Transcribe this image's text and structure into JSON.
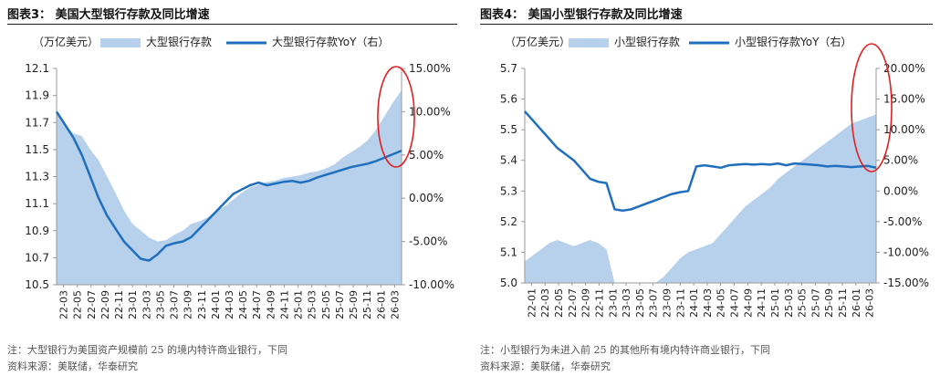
{
  "colors": {
    "area": "#b7d1ec",
    "line": "#1f6fbe",
    "text": "#222222",
    "ellipse": "#e02020",
    "axis": "#9a9a9a"
  },
  "chart_data": [
    {
      "type": "area+line",
      "figure_label": "图表3：",
      "title": "美国大型银行存款及同比增速",
      "unit_label": "（万亿美元）",
      "legend": {
        "area": "大型银行存款",
        "line": "大型银行存款YoY（右）",
        "placement": "top"
      },
      "left_axis": {
        "min": 10.5,
        "max": 12.1,
        "ticks": [
          "12.1",
          "11.9",
          "11.7",
          "11.5",
          "11.3",
          "11.1",
          "10.9",
          "10.7",
          "10.5"
        ]
      },
      "right_axis": {
        "min": -10,
        "max": 15,
        "ticks": [
          "15.00%",
          "10.00%",
          "5.00%",
          "0.00%",
          "-5.00%",
          "-10.00%"
        ]
      },
      "x_ticks": [
        "22-03",
        "22-05",
        "22-07",
        "22-09",
        "22-11",
        "23-01",
        "23-03",
        "23-05",
        "23-07",
        "23-09",
        "23-11",
        "24-01",
        "24-03",
        "24-05",
        "24-07",
        "24-09",
        "24-11",
        "25-01",
        "25-03",
        "25-05",
        "25-07",
        "25-09",
        "25-11",
        "26-01",
        "26-03"
      ],
      "series": [
        {
          "name": "大型银行存款",
          "axis": "left",
          "kind": "area",
          "values": [
            11.8,
            11.68,
            11.62,
            11.6,
            11.5,
            11.42,
            11.3,
            11.18,
            11.05,
            10.95,
            10.9,
            10.85,
            10.82,
            10.83,
            10.87,
            10.9,
            10.95,
            10.97,
            11.0,
            11.05,
            11.08,
            11.13,
            11.18,
            11.22,
            11.24,
            11.26,
            11.27,
            11.29,
            11.3,
            11.31,
            11.33,
            11.34,
            11.36,
            11.39,
            11.44,
            11.48,
            11.52,
            11.57,
            11.65,
            11.75,
            11.85,
            11.94
          ]
        },
        {
          "name": "大型银行存款YoY（右）",
          "axis": "right",
          "kind": "line",
          "values": [
            10.0,
            8.5,
            7.0,
            5.0,
            2.5,
            0.0,
            -2.0,
            -3.5,
            -5.0,
            -6.0,
            -7.0,
            -7.2,
            -6.5,
            -5.5,
            -5.2,
            -5.0,
            -4.5,
            -3.5,
            -2.5,
            -1.5,
            -0.5,
            0.5,
            1.0,
            1.5,
            1.8,
            1.5,
            1.7,
            1.9,
            2.0,
            1.8,
            2.0,
            2.4,
            2.7,
            3.0,
            3.3,
            3.6,
            3.8,
            4.0,
            4.3,
            4.7,
            5.1,
            5.5
          ]
        }
      ],
      "annotation": "red-ellipse-highlight-latest"
    },
    {
      "type": "area+line",
      "figure_label": "图表4：",
      "title": "美国小型银行存款及同比增速",
      "unit_label": "（万亿美元）",
      "legend": {
        "area": "小型银行存款",
        "line": "小型银行存款YoY（右）",
        "placement": "top"
      },
      "left_axis": {
        "min": 5.0,
        "max": 5.7,
        "ticks": [
          "5.7",
          "5.6",
          "5.5",
          "5.4",
          "5.3",
          "5.2",
          "5.1",
          "5.0"
        ]
      },
      "right_axis": {
        "min": -15,
        "max": 20,
        "ticks": [
          "20.00%",
          "15.00%",
          "10.00%",
          "5.00%",
          "0.00%",
          "-5.00%",
          "-10.00%",
          "-15.00%"
        ]
      },
      "x_ticks": [
        "22-01",
        "22-03",
        "22-05",
        "22-07",
        "22-09",
        "22-11",
        "23-01",
        "23-03",
        "23-05",
        "23-07",
        "23-09",
        "23-11",
        "24-01",
        "24-03",
        "24-05",
        "24-07",
        "24-09",
        "24-11",
        "25-01",
        "25-03",
        "25-05",
        "25-07",
        "25-09",
        "25-11",
        "26-01",
        "26-03"
      ],
      "series": [
        {
          "name": "小型银行存款",
          "axis": "left",
          "kind": "area",
          "values": [
            5.07,
            5.09,
            5.11,
            5.13,
            5.14,
            5.13,
            5.12,
            5.13,
            5.14,
            5.13,
            5.11,
            5.0,
            5.0,
            5.0,
            5.0,
            5.0,
            5.0,
            5.02,
            5.05,
            5.08,
            5.1,
            5.11,
            5.12,
            5.13,
            5.16,
            5.19,
            5.22,
            5.25,
            5.27,
            5.29,
            5.31,
            5.34,
            5.36,
            5.38,
            5.4,
            5.42,
            5.44,
            5.46,
            5.48,
            5.5,
            5.52,
            5.53,
            5.54,
            5.55
          ]
        },
        {
          "name": "小型银行存款YoY（右）",
          "axis": "right",
          "kind": "line",
          "values": [
            13.0,
            11.5,
            10.0,
            8.5,
            7.0,
            6.0,
            5.0,
            3.5,
            2.0,
            1.5,
            1.3,
            -3.0,
            -3.2,
            -3.0,
            -2.5,
            -2.0,
            -1.5,
            -1.0,
            -0.5,
            -0.2,
            0.0,
            4.0,
            4.2,
            4.0,
            3.8,
            4.2,
            4.3,
            4.4,
            4.3,
            4.4,
            4.3,
            4.5,
            4.2,
            4.5,
            4.4,
            4.3,
            4.2,
            4.0,
            4.1,
            4.0,
            3.9,
            4.0,
            4.1,
            3.8
          ]
        }
      ],
      "annotation": "red-ellipse-highlight-latest"
    }
  ],
  "notes": {
    "left_note": "注：大型银行为美国资产规模前 25 的境内特许商业银行，下同",
    "left_source": "资料来源：美联储，华泰研究",
    "right_note": "注：小型银行为未进入前 25 的其他所有境内特许商业银行，下同",
    "right_source": "资料来源：美联储，华泰研究"
  }
}
